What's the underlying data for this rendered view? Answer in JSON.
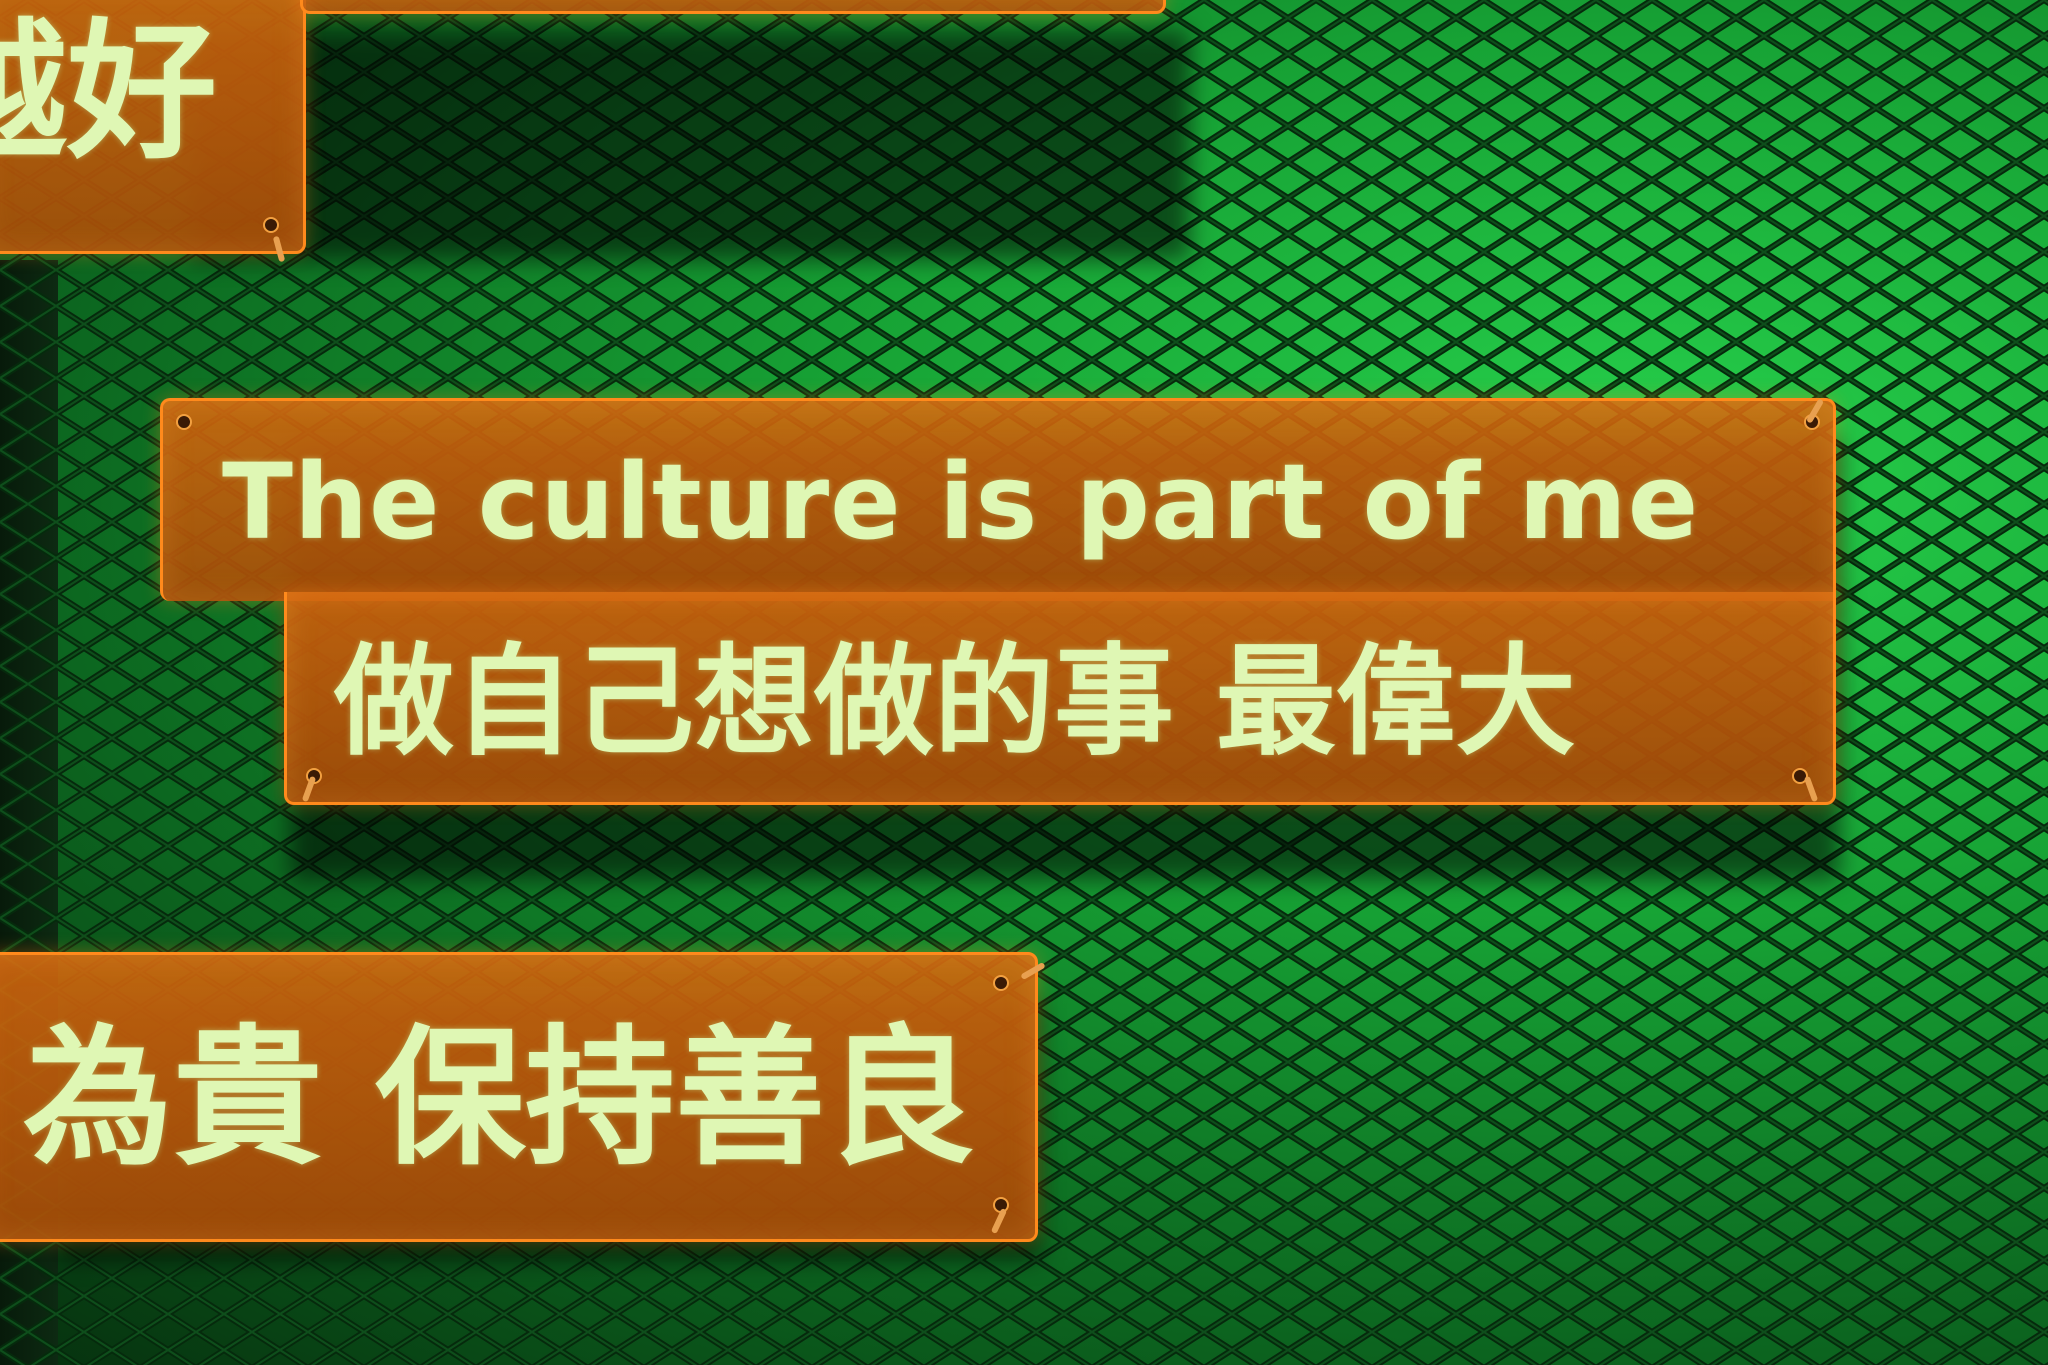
{
  "signs": {
    "top_left": {
      "text": "越好"
    },
    "main": {
      "line1": "The culture is part of me",
      "line2": "做自己想做的事 最偉大"
    },
    "bottom_left": {
      "text": "為貴 保持善良"
    }
  },
  "colors": {
    "background_green": "#17a335",
    "sign_orange": "#d6680e",
    "sign_edge": "#ff8a1c",
    "text_glow": "#dff7b4"
  }
}
